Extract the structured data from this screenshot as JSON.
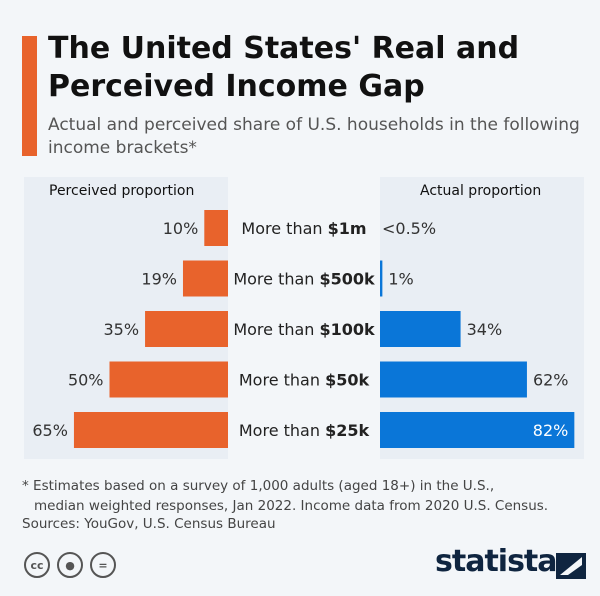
{
  "chart_data": {
    "type": "bar",
    "title": "The United States' Real and Perceived Income Gap",
    "subtitle": "Actual and perceived share of U.S. households in the following income brackets*",
    "categories": [
      "More than $1m",
      "More than $500k",
      "More than $100k",
      "More than $50k",
      "More than $25k"
    ],
    "category_prefix": "More than ",
    "category_amounts": [
      "$1m",
      "$500k",
      "$100k",
      "$50k",
      "$25k"
    ],
    "series": [
      {
        "name": "Perceived proportion",
        "values": [
          10,
          19,
          35,
          50,
          65
        ],
        "labels": [
          "10%",
          "19%",
          "35%",
          "50%",
          "65%"
        ],
        "color": "#e8632c"
      },
      {
        "name": "Actual proportion",
        "values": [
          0.2,
          1,
          34,
          62,
          82
        ],
        "labels": [
          "<0.5%",
          "1%",
          "34%",
          "62%",
          "82%"
        ],
        "color": "#0a76d8"
      }
    ],
    "unit": "%"
  },
  "footnote_line1": "* Estimates based on a survey of 1,000 adults (aged 18+) in the U.S.,",
  "footnote_line2": "median weighted responses, Jan 2022. Income data from 2020 U.S. Census.",
  "sources": "Sources: YouGov, U.S. Census Bureau",
  "license_icons": [
    "cc",
    "by",
    "="
  ],
  "brand": "statista"
}
